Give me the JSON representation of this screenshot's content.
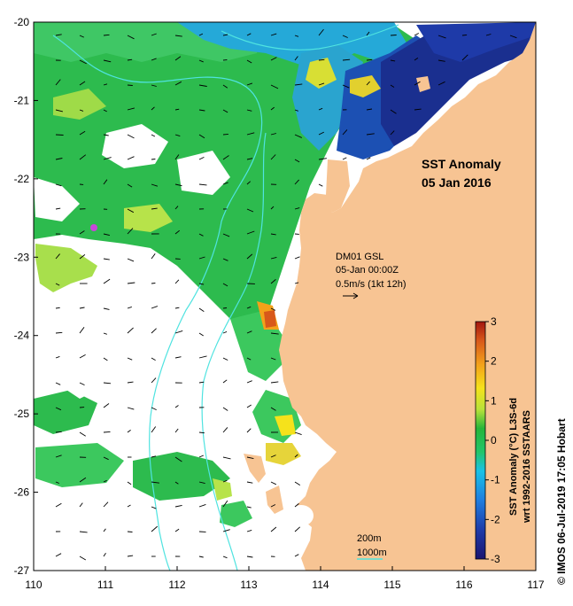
{
  "map": {
    "title": "SST Anomaly",
    "date": "05 Jan 2016",
    "current_label": {
      "station": "DM01 GSL",
      "time": "05-Jan 00:00Z",
      "scale": "0.5m/s (1kt 12h)"
    },
    "depth_legend": {
      "shallow": "200m",
      "deep": "1000m",
      "color": "#4fe3e0"
    },
    "x_ticks": [
      "110",
      "111",
      "112",
      "113",
      "114",
      "115",
      "116",
      "117"
    ],
    "y_ticks": [
      "-20",
      "-21",
      "-22",
      "-23",
      "-24",
      "-25",
      "-26",
      "-27"
    ],
    "colors": {
      "land": "#f7c493",
      "no_data": "#ffffff",
      "contour": "#4fe3e0"
    }
  },
  "colorbar": {
    "ticks": [
      "3",
      "2",
      "1",
      "0",
      "-1",
      "-2",
      "-3"
    ],
    "label_line1": "SST Anomaly (°C) L3S-6d",
    "label_line2": "wrt 1992-2016 SSTAARS",
    "range": [
      -3,
      3
    ]
  },
  "copyright": "© IMOS 06-Jul-2019 17:05 Hobart"
}
